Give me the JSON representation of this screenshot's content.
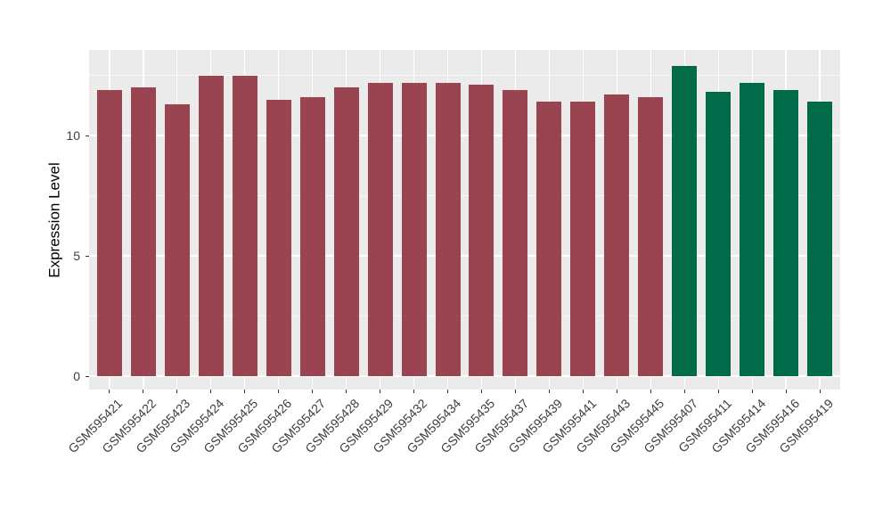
{
  "chart_data": {
    "type": "bar",
    "title": "",
    "xlabel": "",
    "ylabel": "Expression Level",
    "categories": [
      "GSM595421",
      "GSM595422",
      "GSM595423",
      "GSM595424",
      "GSM595425",
      "GSM595426",
      "GSM595427",
      "GSM595428",
      "GSM595429",
      "GSM595432",
      "GSM595434",
      "GSM595435",
      "GSM595437",
      "GSM595439",
      "GSM595441",
      "GSM595443",
      "GSM595445",
      "GSM595407",
      "GSM595411",
      "GSM595414",
      "GSM595416",
      "GSM595419"
    ],
    "values": [
      11.9,
      12.0,
      11.3,
      12.5,
      12.5,
      11.5,
      11.6,
      12.0,
      12.2,
      12.2,
      12.2,
      12.1,
      11.9,
      11.4,
      11.4,
      11.7,
      11.6,
      12.9,
      11.8,
      12.2,
      11.9,
      11.4
    ],
    "groups": [
      "group1",
      "group1",
      "group1",
      "group1",
      "group1",
      "group1",
      "group1",
      "group1",
      "group1",
      "group1",
      "group1",
      "group1",
      "group1",
      "group1",
      "group1",
      "group1",
      "group1",
      "group2",
      "group2",
      "group2",
      "group2",
      "group2"
    ],
    "group_colors": {
      "group1": "#9A4452",
      "group2": "#016A49"
    },
    "yticks": [
      0,
      5,
      10
    ],
    "yticks_minor": [
      2.5,
      7.5,
      12.5
    ],
    "ylim": [
      0,
      13.6
    ],
    "grid": true,
    "legend": "none",
    "panel_bg": "#EBEBEB",
    "grid_color": "#FFFFFF",
    "tick_color": "#333333",
    "axis_text_color": "#3d3d3d"
  }
}
